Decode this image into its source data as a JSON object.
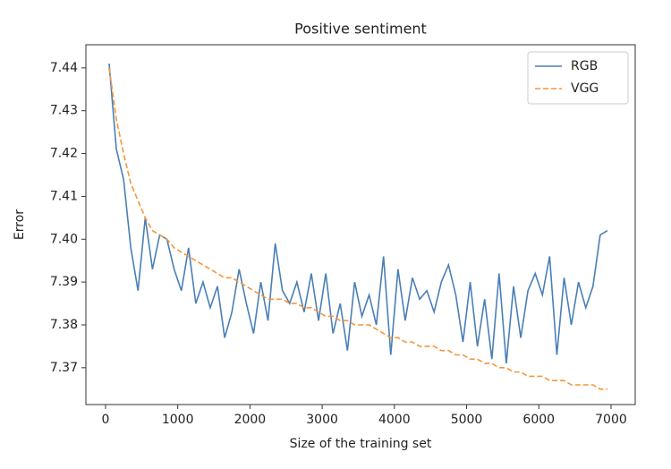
{
  "chart_data": {
    "type": "line",
    "title": "Positive sentiment",
    "xlabel": "Size of the training set",
    "ylabel": "Error",
    "x": [
      50,
      150,
      250,
      350,
      450,
      550,
      650,
      750,
      850,
      950,
      1050,
      1150,
      1250,
      1350,
      1450,
      1550,
      1650,
      1750,
      1850,
      1950,
      2050,
      2150,
      2250,
      2350,
      2450,
      2550,
      2650,
      2750,
      2850,
      2950,
      3050,
      3150,
      3250,
      3350,
      3450,
      3550,
      3650,
      3750,
      3850,
      3950,
      4050,
      4150,
      4250,
      4350,
      4450,
      4550,
      4650,
      4750,
      4850,
      4950,
      5050,
      5150,
      5250,
      5350,
      5450,
      5550,
      5650,
      5750,
      5850,
      5950,
      6050,
      6150,
      6250,
      6350,
      6450,
      6550,
      6650,
      6750,
      6850,
      6950
    ],
    "series": [
      {
        "name": "RGB",
        "color": "#4a7fb5",
        "linestyle": "-",
        "values": [
          7.441,
          7.421,
          7.414,
          7.398,
          7.388,
          7.405,
          7.393,
          7.401,
          7.4,
          7.393,
          7.388,
          7.398,
          7.385,
          7.39,
          7.384,
          7.389,
          7.377,
          7.383,
          7.393,
          7.385,
          7.378,
          7.39,
          7.381,
          7.399,
          7.388,
          7.385,
          7.39,
          7.383,
          7.392,
          7.381,
          7.392,
          7.378,
          7.385,
          7.374,
          7.39,
          7.382,
          7.387,
          7.38,
          7.396,
          7.373,
          7.393,
          7.381,
          7.391,
          7.386,
          7.388,
          7.383,
          7.39,
          7.394,
          7.387,
          7.376,
          7.39,
          7.375,
          7.386,
          7.372,
          7.392,
          7.371,
          7.389,
          7.377,
          7.388,
          7.392,
          7.387,
          7.396,
          7.373,
          7.391,
          7.38,
          7.39,
          7.384,
          7.389,
          7.401,
          7.402
        ]
      },
      {
        "name": "VGG",
        "color": "#f5963a",
        "linestyle": "--",
        "values": [
          7.44,
          7.428,
          7.42,
          7.413,
          7.409,
          7.405,
          7.402,
          7.401,
          7.4,
          7.398,
          7.397,
          7.396,
          7.395,
          7.394,
          7.393,
          7.392,
          7.391,
          7.391,
          7.39,
          7.389,
          7.388,
          7.387,
          7.386,
          7.386,
          7.386,
          7.385,
          7.385,
          7.384,
          7.384,
          7.383,
          7.382,
          7.382,
          7.381,
          7.381,
          7.38,
          7.38,
          7.38,
          7.379,
          7.378,
          7.377,
          7.377,
          7.376,
          7.376,
          7.375,
          7.375,
          7.375,
          7.374,
          7.374,
          7.373,
          7.373,
          7.372,
          7.372,
          7.371,
          7.371,
          7.37,
          7.37,
          7.369,
          7.369,
          7.368,
          7.368,
          7.368,
          7.367,
          7.367,
          7.367,
          7.366,
          7.366,
          7.366,
          7.366,
          7.365,
          7.365
        ]
      }
    ],
    "xlim": [
      -272,
      7335
    ],
    "ylim": [
      7.3614,
      7.4454
    ],
    "xticks": [
      0,
      1000,
      2000,
      3000,
      4000,
      5000,
      6000,
      7000
    ],
    "yticks": [
      7.37,
      7.38,
      7.39,
      {
        "value": 7.4,
        "label": "7.40"
      },
      7.41,
      7.42,
      7.43,
      7.44
    ],
    "legend": "upper right"
  }
}
